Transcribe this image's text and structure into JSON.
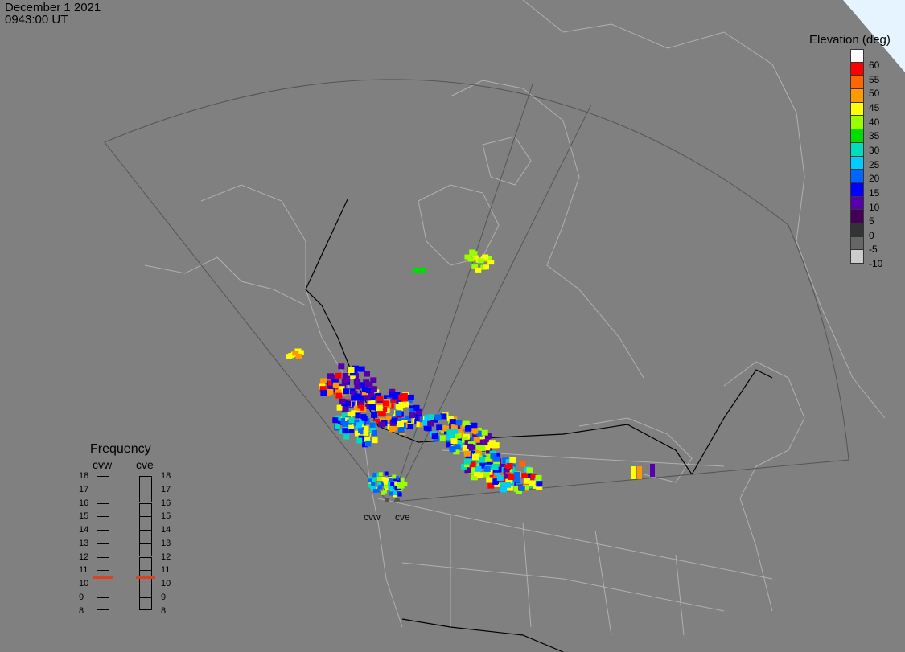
{
  "header": {
    "date": "December  1 2021",
    "time": "0943:00 UT"
  },
  "legend": {
    "title": "Elevation (deg)",
    "colors": [
      "#ffffff",
      "#ff0000",
      "#ff6600",
      "#ff9900",
      "#ffff00",
      "#99ff00",
      "#00dd00",
      "#00ddbb",
      "#00ccff",
      "#0066ff",
      "#0000ff",
      "#5500aa",
      "#440055",
      "#333333",
      "#666666",
      "#cccccc"
    ],
    "labels": [
      "60",
      "55",
      "50",
      "45",
      "40",
      "35",
      "30",
      "25",
      "20",
      "15",
      "10",
      "5",
      "0",
      "-5",
      "-10"
    ]
  },
  "frequency": {
    "title": "Frequency",
    "radars": [
      "cvw",
      "cve"
    ],
    "scale": [
      "18",
      "17",
      "16",
      "15",
      "14",
      "13",
      "12",
      "11",
      "10",
      "9",
      "8"
    ],
    "selected_mhz": [
      10.5,
      10.5
    ]
  },
  "radar_sites": [
    {
      "id": "cvw",
      "label": "cvw"
    },
    {
      "id": "cve",
      "label": "cve"
    }
  ]
}
